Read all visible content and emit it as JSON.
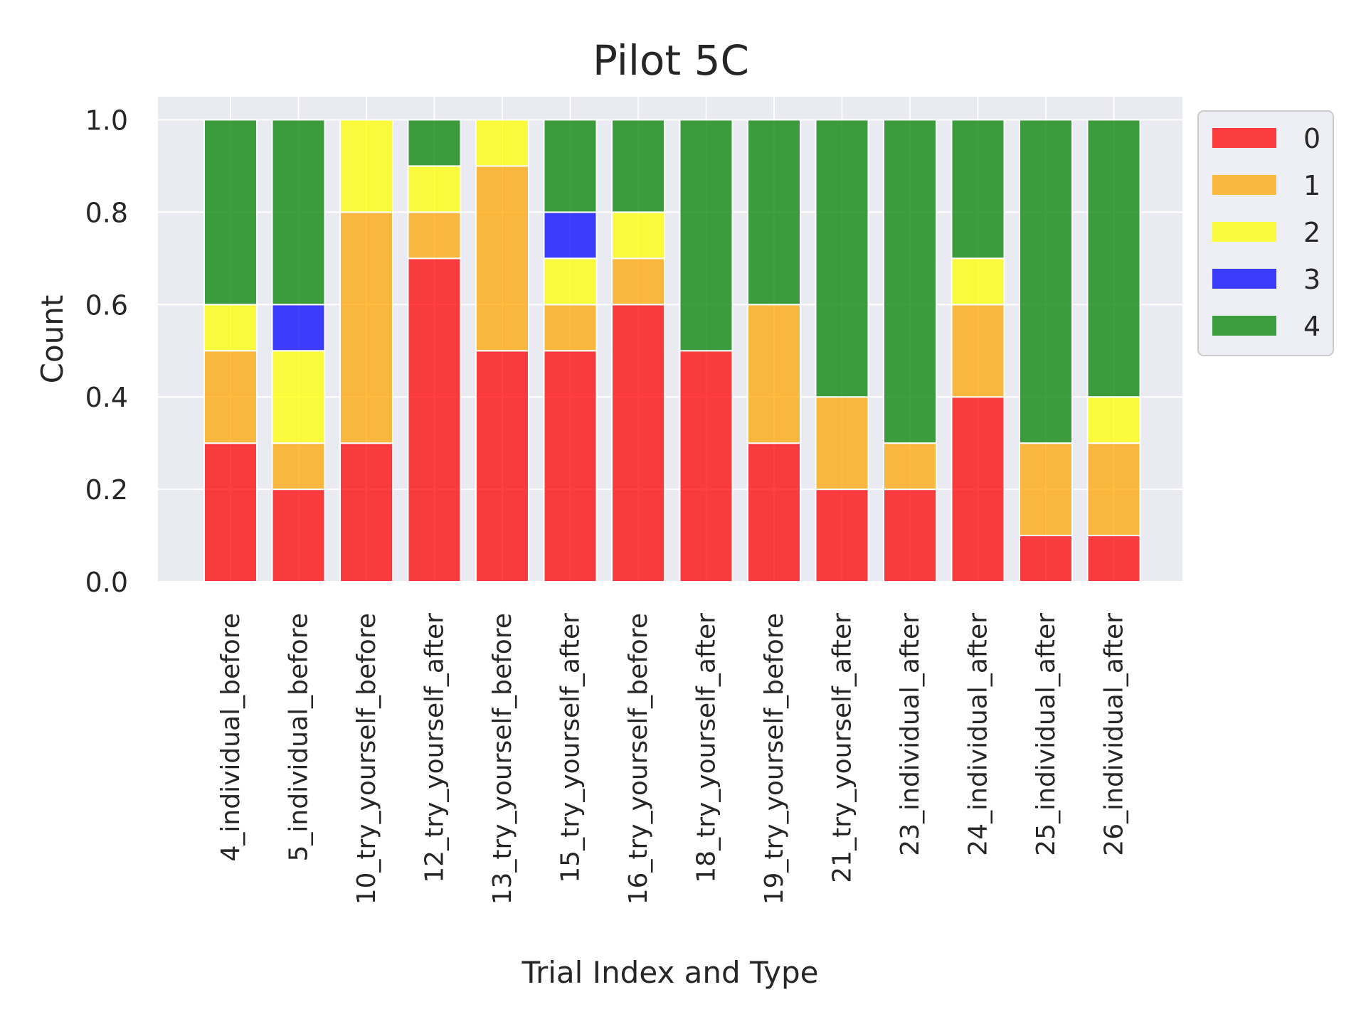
{
  "chart_data": {
    "type": "bar",
    "stacked": true,
    "title": "Pilot 5C",
    "xlabel": "Trial Index and Type",
    "ylabel": "Count",
    "ylim": [
      0,
      1.05
    ],
    "yticks": [
      "0.0",
      "0.2",
      "0.4",
      "0.6",
      "0.8",
      "1.0"
    ],
    "grid": true,
    "legend_position": "outside-top-right",
    "categories": [
      "4_individual_before",
      "5_individual_before",
      "10_try_yourself_before",
      "12_try_yourself_after",
      "13_try_yourself_before",
      "15_try_yourself_after",
      "16_try_yourself_before",
      "18_try_yourself_after",
      "19_try_yourself_before",
      "21_try_yourself_after",
      "23_individual_after",
      "24_individual_after",
      "25_individual_after",
      "26_individual_after"
    ],
    "series": [
      {
        "name": "0",
        "color": "#ff0000",
        "values": [
          0.3,
          0.2,
          0.3,
          0.7,
          0.5,
          0.5,
          0.6,
          0.5,
          0.3,
          0.2,
          0.2,
          0.4,
          0.1,
          0.1
        ]
      },
      {
        "name": "1",
        "color": "#ffa500",
        "values": [
          0.2,
          0.1,
          0.5,
          0.1,
          0.4,
          0.1,
          0.1,
          0.0,
          0.3,
          0.2,
          0.1,
          0.2,
          0.2,
          0.2
        ]
      },
      {
        "name": "2",
        "color": "#ffff00",
        "values": [
          0.1,
          0.2,
          0.2,
          0.1,
          0.1,
          0.1,
          0.1,
          0.0,
          0.0,
          0.0,
          0.0,
          0.1,
          0.0,
          0.1
        ]
      },
      {
        "name": "3",
        "color": "#0000ff",
        "values": [
          0.0,
          0.1,
          0.0,
          0.0,
          0.0,
          0.1,
          0.0,
          0.0,
          0.0,
          0.0,
          0.0,
          0.0,
          0.0,
          0.0
        ]
      },
      {
        "name": "4",
        "color": "#008000",
        "values": [
          0.4,
          0.4,
          0.0,
          0.1,
          0.0,
          0.2,
          0.2,
          0.5,
          0.4,
          0.6,
          0.7,
          0.3,
          0.7,
          0.6
        ]
      }
    ]
  }
}
